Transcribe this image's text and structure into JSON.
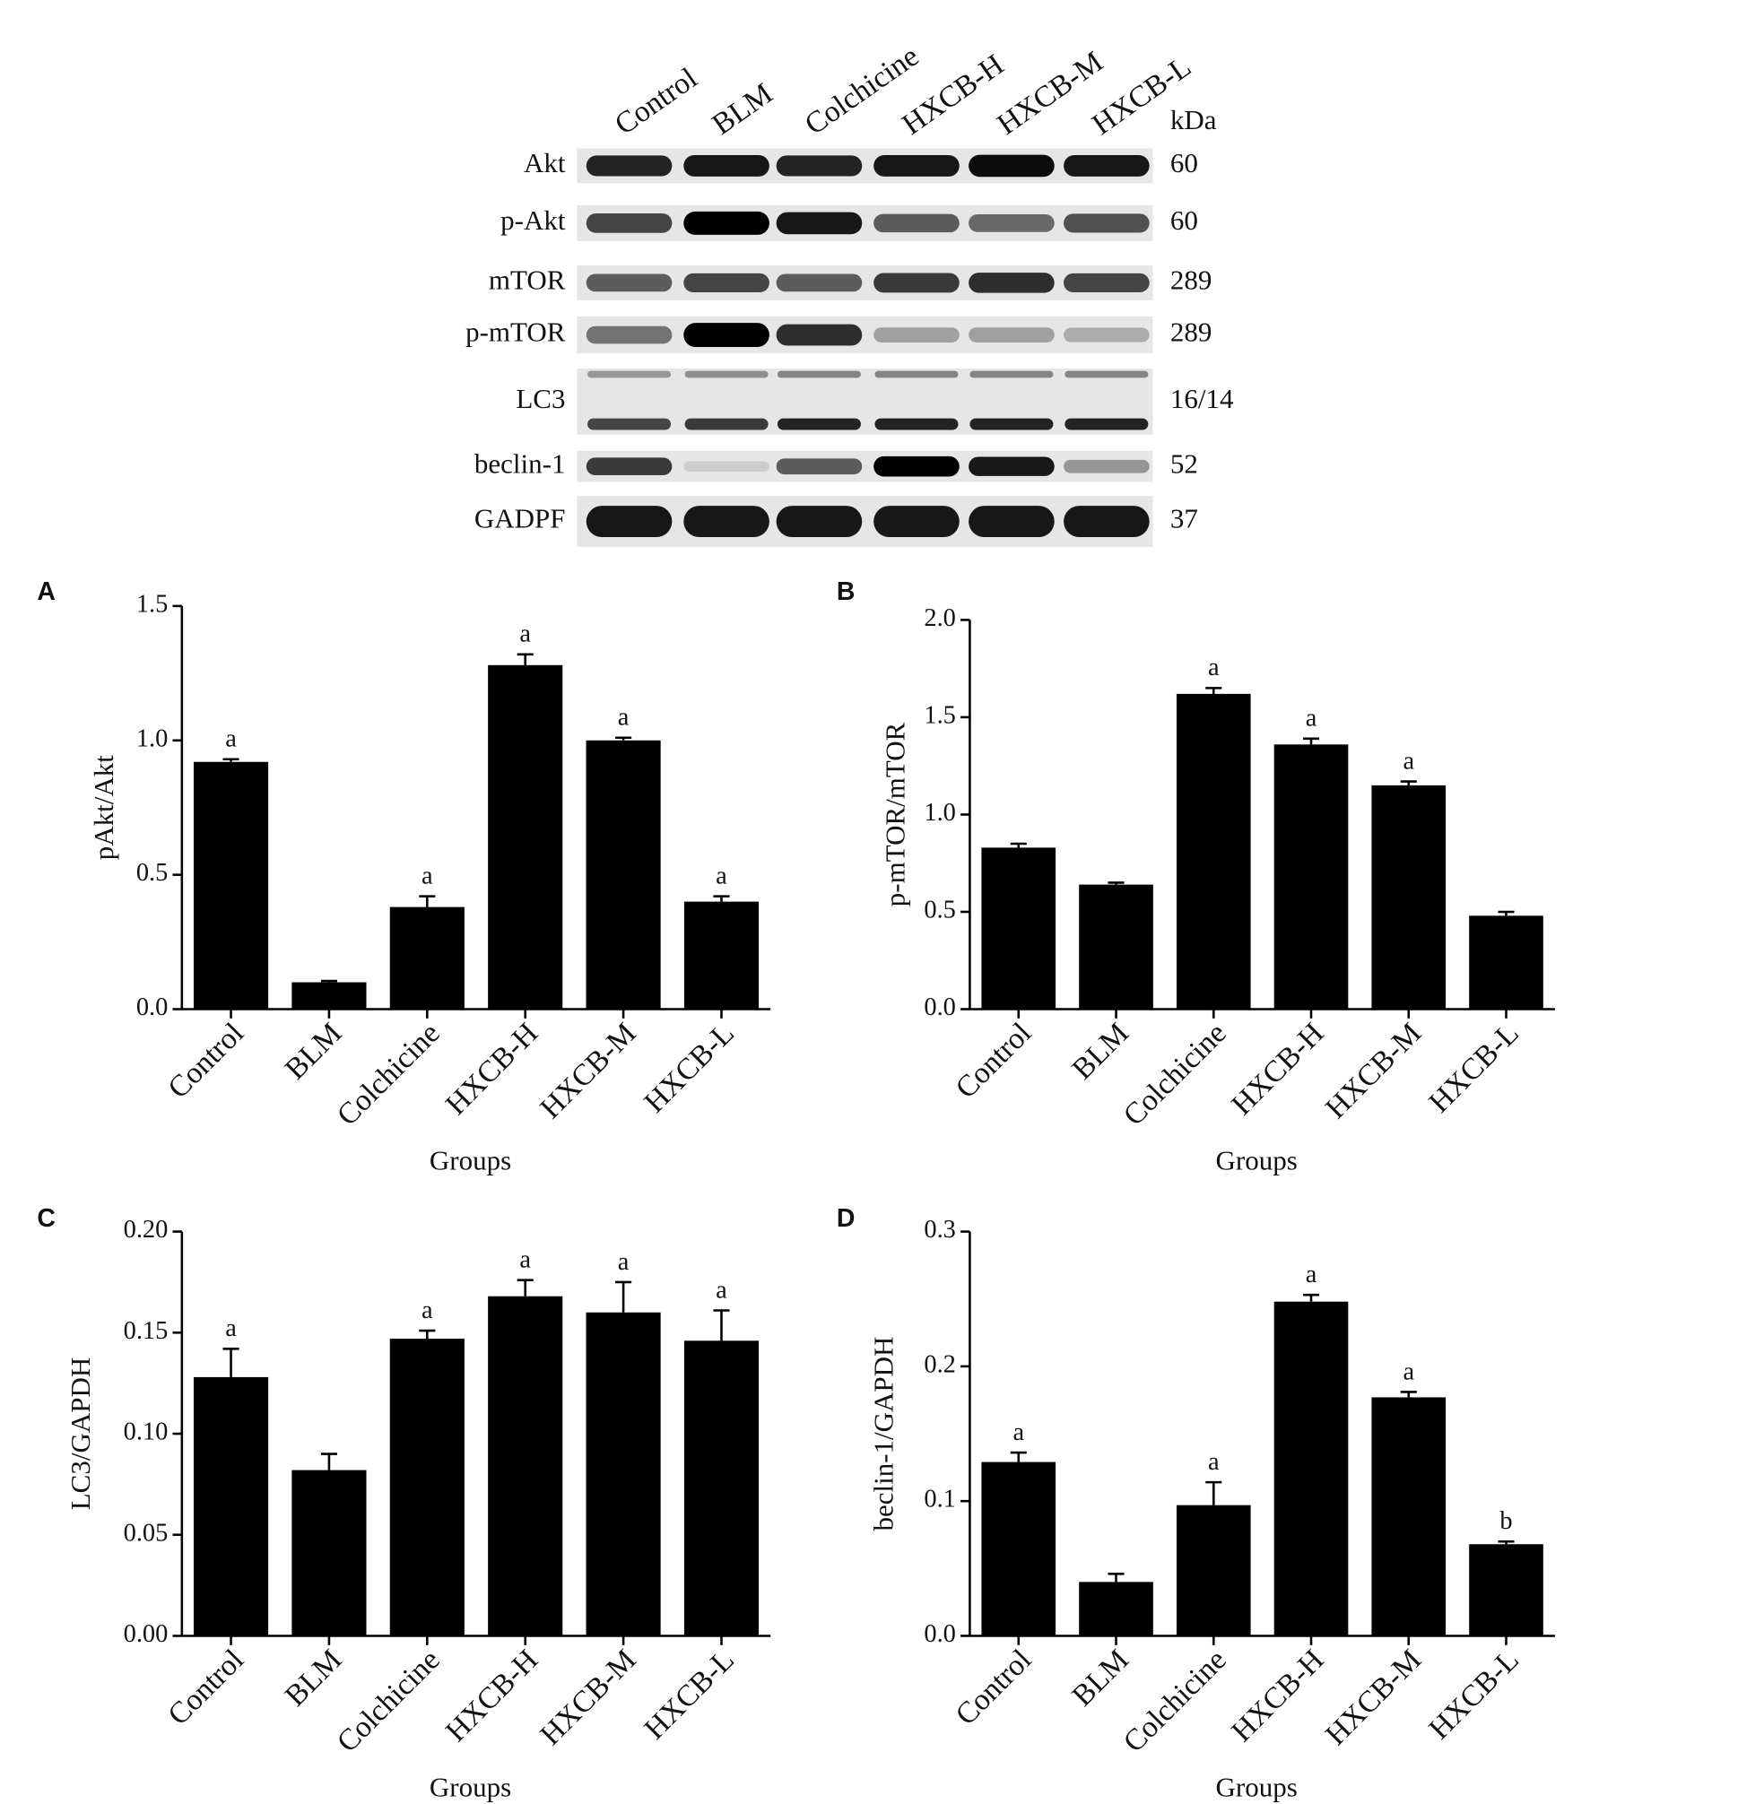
{
  "blot": {
    "lanes": [
      "Control",
      "BLM",
      "Colchicine",
      "HXCB-H",
      "HXCB-M",
      "HXCB-L"
    ],
    "kda_header": "kDa",
    "rows": [
      {
        "label": "Akt",
        "kda": "60"
      },
      {
        "label": "p-Akt",
        "kda": "60"
      },
      {
        "label": "mTOR",
        "kda": "289"
      },
      {
        "label": "p-mTOR",
        "kda": "289"
      },
      {
        "label": "LC3",
        "kda": "16/14"
      },
      {
        "label": "beclin-1",
        "kda": "52"
      },
      {
        "label": "GADPF",
        "kda": "37"
      }
    ]
  },
  "chart_data": [
    {
      "type": "bar",
      "panel": "A",
      "ylabel": "pAkt/Akt",
      "xlabel": "Groups",
      "color": "#000000",
      "categories": [
        "Control",
        "BLM",
        "Colchicine",
        "HXCB-H",
        "HXCB-M",
        "HXCB-L"
      ],
      "values": [
        0.92,
        0.1,
        0.38,
        1.28,
        1.0,
        0.4
      ],
      "errors": [
        0.01,
        0.005,
        0.04,
        0.04,
        0.01,
        0.02
      ],
      "annotations": [
        "a",
        null,
        "a",
        "a",
        "a",
        "a"
      ],
      "ylim": [
        0,
        1.5
      ],
      "yticks": [
        {
          "value": 0,
          "label": "0.0"
        },
        0.5,
        {
          "value": 1,
          "label": "1.0"
        },
        1.5
      ]
    },
    {
      "type": "bar",
      "panel": "B",
      "ylabel": "p-mTOR/mTOR",
      "xlabel": "Groups",
      "color": "#000000",
      "categories": [
        "Control",
        "BLM",
        "Colchicine",
        "HXCB-H",
        "HXCB-M",
        "HXCB-L"
      ],
      "values": [
        0.83,
        0.64,
        1.62,
        1.36,
        1.15,
        0.48
      ],
      "errors": [
        0.02,
        0.01,
        0.03,
        0.03,
        0.02,
        0.02
      ],
      "annotations": [
        null,
        null,
        "a",
        "a",
        "a",
        null
      ],
      "ylim": [
        0,
        2.0
      ],
      "yticks": [
        {
          "value": 0,
          "label": "0.0"
        },
        0.5,
        {
          "value": 1,
          "label": "1.0"
        },
        1.5,
        {
          "value": 2,
          "label": "2.0"
        }
      ]
    },
    {
      "type": "bar",
      "panel": "C",
      "ylabel": "LC3/GAPDH",
      "xlabel": "Groups",
      "color": "#000000",
      "categories": [
        "Control",
        "BLM",
        "Colchicine",
        "HXCB-H",
        "HXCB-M",
        "HXCB-L"
      ],
      "values": [
        0.128,
        0.082,
        0.147,
        0.168,
        0.16,
        0.146
      ],
      "errors": [
        0.014,
        0.008,
        0.004,
        0.008,
        0.015,
        0.015
      ],
      "annotations": [
        "a",
        null,
        "a",
        "a",
        "a",
        "a"
      ],
      "ylim": [
        0,
        0.2
      ],
      "yticks": [
        {
          "value": 0,
          "label": "0.00"
        },
        0.05,
        {
          "value": 0.1,
          "label": "0.10"
        },
        0.15,
        {
          "value": 0.2,
          "label": "0.20"
        }
      ]
    },
    {
      "type": "bar",
      "panel": "D",
      "ylabel": "beclin-1/GAPDH",
      "xlabel": "Groups",
      "color": "#000000",
      "categories": [
        "Control",
        "BLM",
        "Colchicine",
        "HXCB-H",
        "HXCB-M",
        "HXCB-L"
      ],
      "values": [
        0.129,
        0.04,
        0.097,
        0.248,
        0.177,
        0.068
      ],
      "errors": [
        0.007,
        0.006,
        0.017,
        0.005,
        0.004,
        0.002
      ],
      "annotations": [
        "a",
        null,
        "a",
        "a",
        "a",
        "b"
      ],
      "ylim": [
        0,
        0.3
      ],
      "yticks": [
        {
          "value": 0,
          "label": "0.0"
        },
        0.1,
        0.2,
        0.3
      ]
    }
  ]
}
